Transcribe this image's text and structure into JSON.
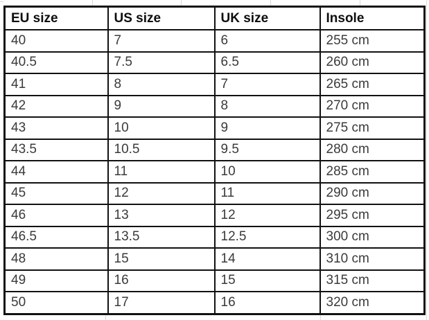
{
  "chart_data": {
    "type": "table",
    "title": "",
    "columns": [
      "EU size",
      "US size",
      "UK size",
      "Insole"
    ],
    "rows": [
      [
        "40",
        "7",
        "6",
        "255 cm"
      ],
      [
        "40.5",
        "7.5",
        "6.5",
        "260 cm"
      ],
      [
        "41",
        "8",
        "7",
        "265 cm"
      ],
      [
        "42",
        "9",
        "8",
        "270 cm"
      ],
      [
        "43",
        "10",
        "9",
        "275 cm"
      ],
      [
        "43.5",
        "10.5",
        "9.5",
        "280 cm"
      ],
      [
        "44",
        "11",
        "10",
        "285 cm"
      ],
      [
        "45",
        "12",
        "11",
        "290 cm"
      ],
      [
        "46",
        "13",
        "12",
        "295 cm"
      ],
      [
        "46.5",
        "13.5",
        "12.5",
        "300 cm"
      ],
      [
        "48",
        "15",
        "14",
        "310 cm"
      ],
      [
        "49",
        "16",
        "15",
        "315 cm"
      ],
      [
        "50",
        "17",
        "16",
        "320 cm"
      ]
    ],
    "layout": {
      "grid": "full-borders",
      "header_row": true
    }
  },
  "colors": {
    "border": "#111111",
    "header_text": "#0d0d0d",
    "body_text": "#3a3a3a",
    "background": "#ffffff",
    "outer_gridline": "#d9d9d9"
  }
}
